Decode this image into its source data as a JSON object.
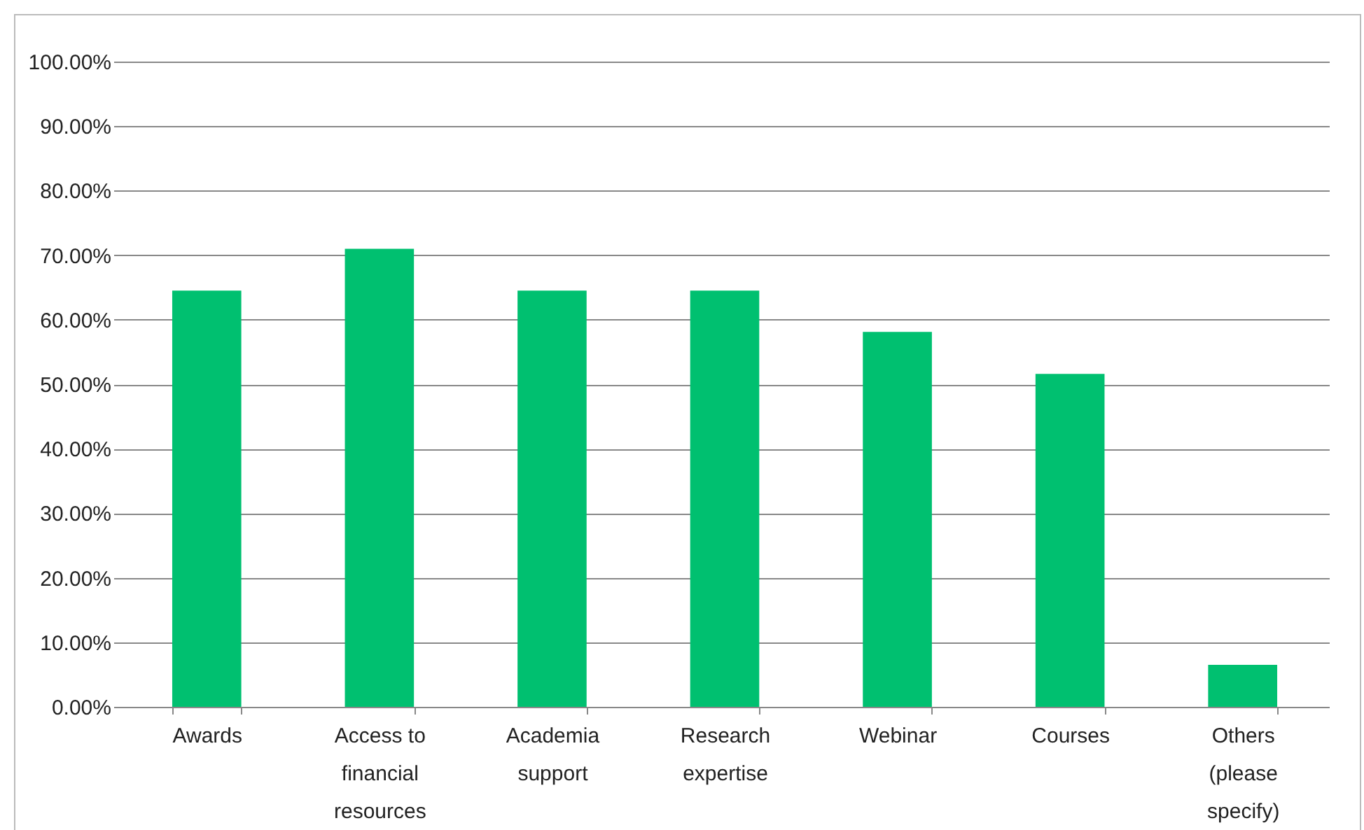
{
  "chart_data": {
    "type": "bar",
    "categories": [
      "Awards",
      "Access to financial resources",
      "Academia support",
      "Research expertise",
      "Webinar",
      "Courses",
      "Others (please specify)"
    ],
    "values": [
      64.5,
      71.0,
      64.5,
      64.5,
      58.1,
      51.6,
      6.5
    ],
    "color": "#00c070",
    "ylim": [
      0,
      100
    ],
    "yticks": [
      {
        "value": 0,
        "label": "0.00%"
      },
      {
        "value": 10,
        "label": "10.00%"
      },
      {
        "value": 20,
        "label": "20.00%"
      },
      {
        "value": 30,
        "label": "30.00%"
      },
      {
        "value": 40,
        "label": "40.00%"
      },
      {
        "value": 50,
        "label": "50.00%"
      },
      {
        "value": 60,
        "label": "60.00%"
      },
      {
        "value": 70,
        "label": "70.00%"
      },
      {
        "value": 80,
        "label": "80.00%"
      },
      {
        "value": 90,
        "label": "90.00%"
      },
      {
        "value": 100,
        "label": "100.00%"
      }
    ],
    "grid": "y"
  }
}
